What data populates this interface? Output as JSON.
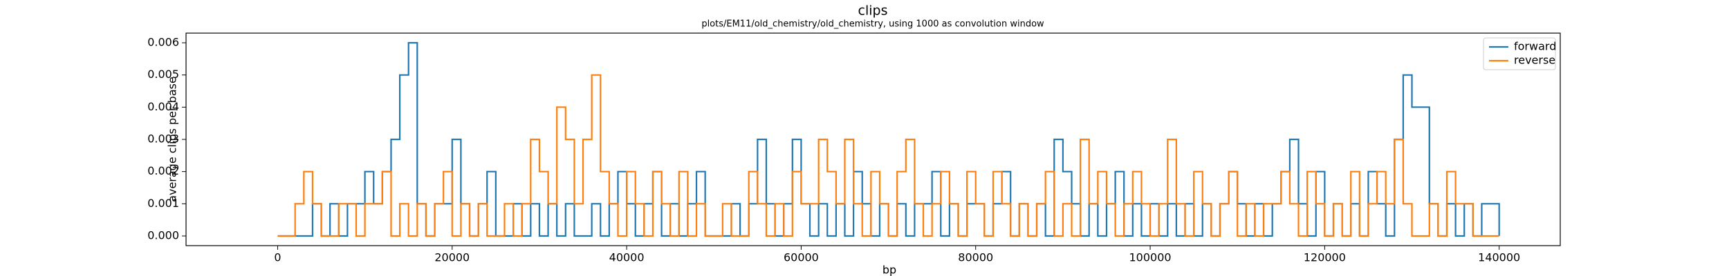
{
  "chart_data": {
    "type": "line",
    "title": "clips",
    "subtitle": "plots/EM11/old_chemistry/old_chemistry, using 1000 as convolution window",
    "xlabel": "bp",
    "ylabel": "average clips per base",
    "xlim": [
      -10500,
      147000
    ],
    "ylim": [
      -0.0003,
      0.0063
    ],
    "xticks": [
      0,
      20000,
      40000,
      60000,
      80000,
      100000,
      120000,
      140000
    ],
    "yticks": [
      {
        "value": 0,
        "label": "0.000"
      },
      {
        "value": 0.001,
        "label": "0.001"
      },
      {
        "value": 0.002,
        "label": "0.002"
      },
      {
        "value": 0.003,
        "label": "0.003"
      },
      {
        "value": 0.004,
        "label": "0.004"
      },
      {
        "value": 0.005,
        "label": "0.005"
      },
      {
        "value": 0.006,
        "label": "0.006"
      }
    ],
    "legend": "upper right",
    "step": true,
    "x": [
      0,
      1000,
      2000,
      3000,
      4000,
      5000,
      6000,
      7000,
      8000,
      9000,
      10000,
      11000,
      12000,
      13000,
      14000,
      15000,
      16000,
      17000,
      18000,
      19000,
      20000,
      21000,
      22000,
      23000,
      24000,
      25000,
      26000,
      27000,
      28000,
      29000,
      30000,
      31000,
      32000,
      33000,
      34000,
      35000,
      36000,
      37000,
      38000,
      39000,
      40000,
      41000,
      42000,
      43000,
      44000,
      45000,
      46000,
      47000,
      48000,
      49000,
      50000,
      51000,
      52000,
      53000,
      54000,
      55000,
      56000,
      57000,
      58000,
      59000,
      60000,
      61000,
      62000,
      63000,
      64000,
      65000,
      66000,
      67000,
      68000,
      69000,
      70000,
      71000,
      72000,
      73000,
      74000,
      75000,
      76000,
      77000,
      78000,
      79000,
      80000,
      81000,
      82000,
      83000,
      84000,
      85000,
      86000,
      87000,
      88000,
      89000,
      90000,
      91000,
      92000,
      93000,
      94000,
      95000,
      96000,
      97000,
      98000,
      99000,
      100000,
      101000,
      102000,
      103000,
      104000,
      105000,
      106000,
      107000,
      108000,
      109000,
      110000,
      111000,
      112000,
      113000,
      114000,
      115000,
      116000,
      117000,
      118000,
      119000,
      120000,
      121000,
      122000,
      123000,
      124000,
      125000,
      126000,
      127000,
      128000,
      129000,
      130000,
      131000,
      132000,
      133000,
      134000,
      135000,
      136000,
      137000,
      138000,
      139000,
      140000
    ],
    "series": [
      {
        "name": "forward",
        "color": "#1f77b4",
        "values": [
          0,
          0,
          0,
          0,
          0.001,
          0,
          0.001,
          0,
          0.001,
          0.001,
          0.002,
          0.001,
          0.002,
          0.003,
          0.005,
          0.006,
          0.001,
          0,
          0.001,
          0.001,
          0.003,
          0.001,
          0,
          0.001,
          0.002,
          0,
          0,
          0.001,
          0,
          0.001,
          0,
          0.001,
          0,
          0.001,
          0,
          0,
          0.001,
          0,
          0.001,
          0.002,
          0.001,
          0,
          0.001,
          0.002,
          0,
          0.001,
          0,
          0.001,
          0.002,
          0,
          0,
          0,
          0.001,
          0,
          0.001,
          0.003,
          0.001,
          0,
          0.001,
          0.003,
          0.001,
          0,
          0.001,
          0,
          0.001,
          0,
          0.002,
          0.001,
          0,
          0.001,
          0,
          0.001,
          0,
          0.001,
          0.001,
          0.002,
          0,
          0.001,
          0,
          0.001,
          0.001,
          0,
          0.001,
          0.002,
          0,
          0.001,
          0,
          0.001,
          0,
          0.003,
          0.002,
          0.001,
          0,
          0.001,
          0,
          0.001,
          0.002,
          0,
          0.001,
          0,
          0.001,
          0,
          0.001,
          0,
          0.001,
          0,
          0.001,
          0,
          0.001,
          0.002,
          0.001,
          0,
          0.001,
          0,
          0.001,
          0.002,
          0.003,
          0.001,
          0,
          0.002,
          0,
          0.001,
          0,
          0.001,
          0,
          0.002,
          0.001,
          0,
          0.003,
          0.005,
          0.004,
          0.004,
          0.001,
          0,
          0.001,
          0,
          0.001,
          0,
          0.001,
          0.001,
          0
        ]
      },
      {
        "name": "reverse",
        "color": "#ff7f0e",
        "values": [
          0,
          0,
          0.001,
          0.002,
          0.001,
          0,
          0,
          0.001,
          0.001,
          0,
          0.001,
          0.001,
          0.002,
          0,
          0.001,
          0,
          0.001,
          0,
          0.001,
          0.002,
          0,
          0.001,
          0,
          0.001,
          0,
          0,
          0.001,
          0,
          0.001,
          0.003,
          0.002,
          0.001,
          0.004,
          0.003,
          0.001,
          0.003,
          0.005,
          0.002,
          0.001,
          0,
          0.002,
          0.001,
          0,
          0.002,
          0.001,
          0,
          0.002,
          0,
          0.001,
          0,
          0,
          0.001,
          0,
          0,
          0.002,
          0.001,
          0,
          0.001,
          0,
          0.002,
          0.001,
          0.001,
          0.003,
          0.002,
          0.001,
          0.003,
          0.001,
          0,
          0.002,
          0.001,
          0,
          0.002,
          0.003,
          0.001,
          0,
          0.001,
          0.002,
          0.001,
          0,
          0.002,
          0.001,
          0,
          0.002,
          0.001,
          0,
          0.001,
          0,
          0.001,
          0.002,
          0,
          0.001,
          0,
          0.003,
          0.001,
          0.002,
          0.001,
          0,
          0.001,
          0.002,
          0.001,
          0,
          0.001,
          0.003,
          0.001,
          0,
          0.002,
          0.001,
          0,
          0.001,
          0.002,
          0,
          0.001,
          0,
          0.001,
          0.001,
          0.002,
          0.001,
          0,
          0.002,
          0.001,
          0,
          0.001,
          0,
          0.002,
          0,
          0.001,
          0.002,
          0.001,
          0.003,
          0.001,
          0,
          0,
          0.001,
          0,
          0.002,
          0.001,
          0.001,
          0,
          0,
          0,
          0
        ]
      }
    ]
  }
}
